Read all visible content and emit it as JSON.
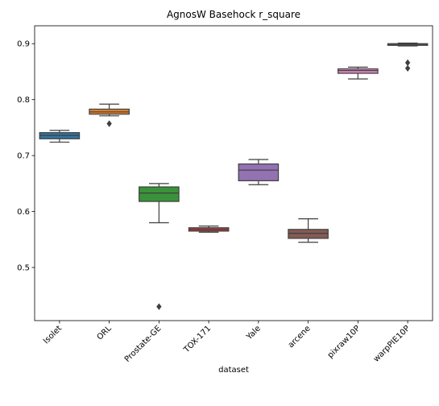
{
  "chart_data": {
    "type": "box",
    "title": "AgnosW Basehock r_square",
    "xlabel": "dataset",
    "ylabel": "",
    "ylim": [
      0.405,
      0.932
    ],
    "yticks": [
      0.5,
      0.6,
      0.7,
      0.8,
      0.9
    ],
    "grid": false,
    "categories": [
      "Isolet",
      "ORL",
      "Prostate-GE",
      "TOX-171",
      "Yale",
      "arcene",
      "pixraw10P",
      "warpPIE10P"
    ],
    "boxes": [
      {
        "category": "Isolet",
        "color": "#3274a1",
        "whisker_low": 0.724,
        "q1": 0.73,
        "median": 0.736,
        "q3": 0.741,
        "whisker_high": 0.745,
        "outliers": []
      },
      {
        "category": "ORL",
        "color": "#e1812c",
        "whisker_low": 0.771,
        "q1": 0.774,
        "median": 0.778,
        "q3": 0.783,
        "whisker_high": 0.792,
        "outliers": [
          0.757
        ]
      },
      {
        "category": "Prostate-GE",
        "color": "#3a923a",
        "whisker_low": 0.58,
        "q1": 0.618,
        "median": 0.633,
        "q3": 0.644,
        "whisker_high": 0.65,
        "outliers": [
          0.43
        ]
      },
      {
        "category": "TOX-171",
        "color": "#c03d3e",
        "whisker_low": 0.563,
        "q1": 0.565,
        "median": 0.568,
        "q3": 0.571,
        "whisker_high": 0.574,
        "outliers": []
      },
      {
        "category": "Yale",
        "color": "#9372b2",
        "whisker_low": 0.648,
        "q1": 0.655,
        "median": 0.674,
        "q3": 0.685,
        "whisker_high": 0.693,
        "outliers": []
      },
      {
        "category": "arcene",
        "color": "#845b53",
        "whisker_low": 0.545,
        "q1": 0.552,
        "median": 0.561,
        "q3": 0.568,
        "whisker_high": 0.587,
        "outliers": []
      },
      {
        "category": "pixraw10P",
        "color": "#d684bd",
        "whisker_low": 0.837,
        "q1": 0.847,
        "median": 0.852,
        "q3": 0.855,
        "whisker_high": 0.858,
        "outliers": []
      },
      {
        "category": "warpPIE10P",
        "color": "#7f7f7f",
        "whisker_low": 0.896,
        "q1": 0.897,
        "median": 0.899,
        "q3": 0.9,
        "whisker_high": 0.901,
        "outliers": [
          0.866,
          0.856
        ]
      }
    ]
  }
}
